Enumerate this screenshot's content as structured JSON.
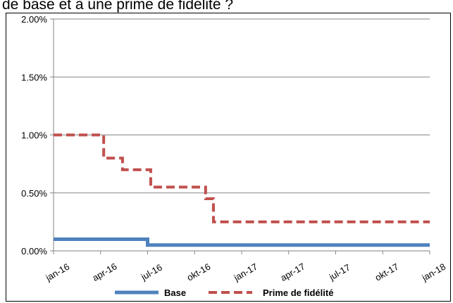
{
  "caption_fragment": "de base et à une prime de fidélité ?",
  "chart_data": {
    "type": "line",
    "title": "",
    "xlabel": "",
    "ylabel": "",
    "ylim": [
      0,
      2.0
    ],
    "y_ticks": [
      "0.00%",
      "0.50%",
      "1.00%",
      "1.50%",
      "2.00%"
    ],
    "y_tick_values": [
      0,
      0.5,
      1.0,
      1.5,
      2.0
    ],
    "x_ticks": [
      "jan-16",
      "apr-16",
      "jul-16",
      "okt-16",
      "jan-17",
      "apr-17",
      "jul-17",
      "okt-17",
      "jan-18"
    ],
    "x_tick_values": [
      0,
      3,
      6,
      9,
      12,
      15,
      18,
      21,
      24
    ],
    "grid": true,
    "legend_position": "bottom",
    "series": [
      {
        "name": "Base",
        "color": "#4f81bd",
        "style": "solid",
        "x": [
          0,
          4,
          6,
          9,
          12,
          24
        ],
        "values": [
          0.1,
          0.1,
          0.05,
          0.05,
          0.05,
          0.05
        ]
      },
      {
        "name": "Prime de fidélité",
        "color": "#c0504d",
        "style": "dashed",
        "x": [
          0,
          2.1,
          3.2,
          4.4,
          6.2,
          7.5,
          8.1,
          9.7,
          10.2,
          12,
          15,
          18,
          21,
          24
        ],
        "values": [
          1.0,
          1.0,
          0.8,
          0.7,
          0.55,
          0.55,
          0.55,
          0.45,
          0.25,
          0.25,
          0.25,
          0.25,
          0.25,
          0.25
        ]
      }
    ]
  }
}
